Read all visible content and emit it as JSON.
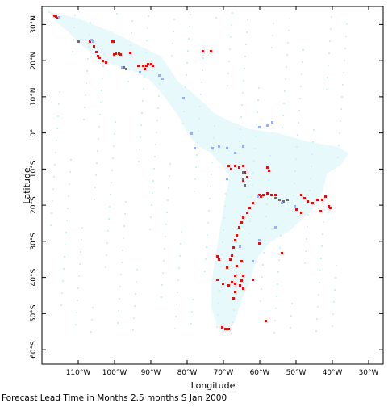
{
  "map": {
    "x_axis_label": "Longitude",
    "y_axis_label": "Latitude",
    "caption": "Forecast Lead Time in Months 2.5 months S Jan 2000",
    "lon_range": [
      -120,
      -26
    ],
    "lat_range": [
      -64,
      35
    ],
    "lon_ticks": [
      {
        "value": -110,
        "label": "110°W"
      },
      {
        "value": -100,
        "label": "100°W"
      },
      {
        "value": -90,
        "label": "90°W"
      },
      {
        "value": -80,
        "label": "80°W"
      },
      {
        "value": -70,
        "label": "70°W"
      },
      {
        "value": -60,
        "label": "60°W"
      },
      {
        "value": -50,
        "label": "50°W"
      },
      {
        "value": -40,
        "label": "40°W"
      },
      {
        "value": -30,
        "label": "30°W"
      }
    ],
    "lat_ticks": [
      {
        "value": 30,
        "label": "30°N"
      },
      {
        "value": 20,
        "label": "20°N"
      },
      {
        "value": 10,
        "label": "10°N"
      },
      {
        "value": 0,
        "label": "0°"
      },
      {
        "value": -10,
        "label": "10°S"
      },
      {
        "value": -20,
        "label": "20°S"
      },
      {
        "value": -30,
        "label": "30°S"
      },
      {
        "value": -40,
        "label": "40°S"
      },
      {
        "value": -50,
        "label": "50°S"
      },
      {
        "value": -60,
        "label": "60°S"
      }
    ],
    "colors": {
      "land": "#e4f8fc",
      "land_speckle": "#ccf0f8",
      "red": "#e01010",
      "gray": "#707070",
      "blue": "#9ab0f0"
    }
  }
}
